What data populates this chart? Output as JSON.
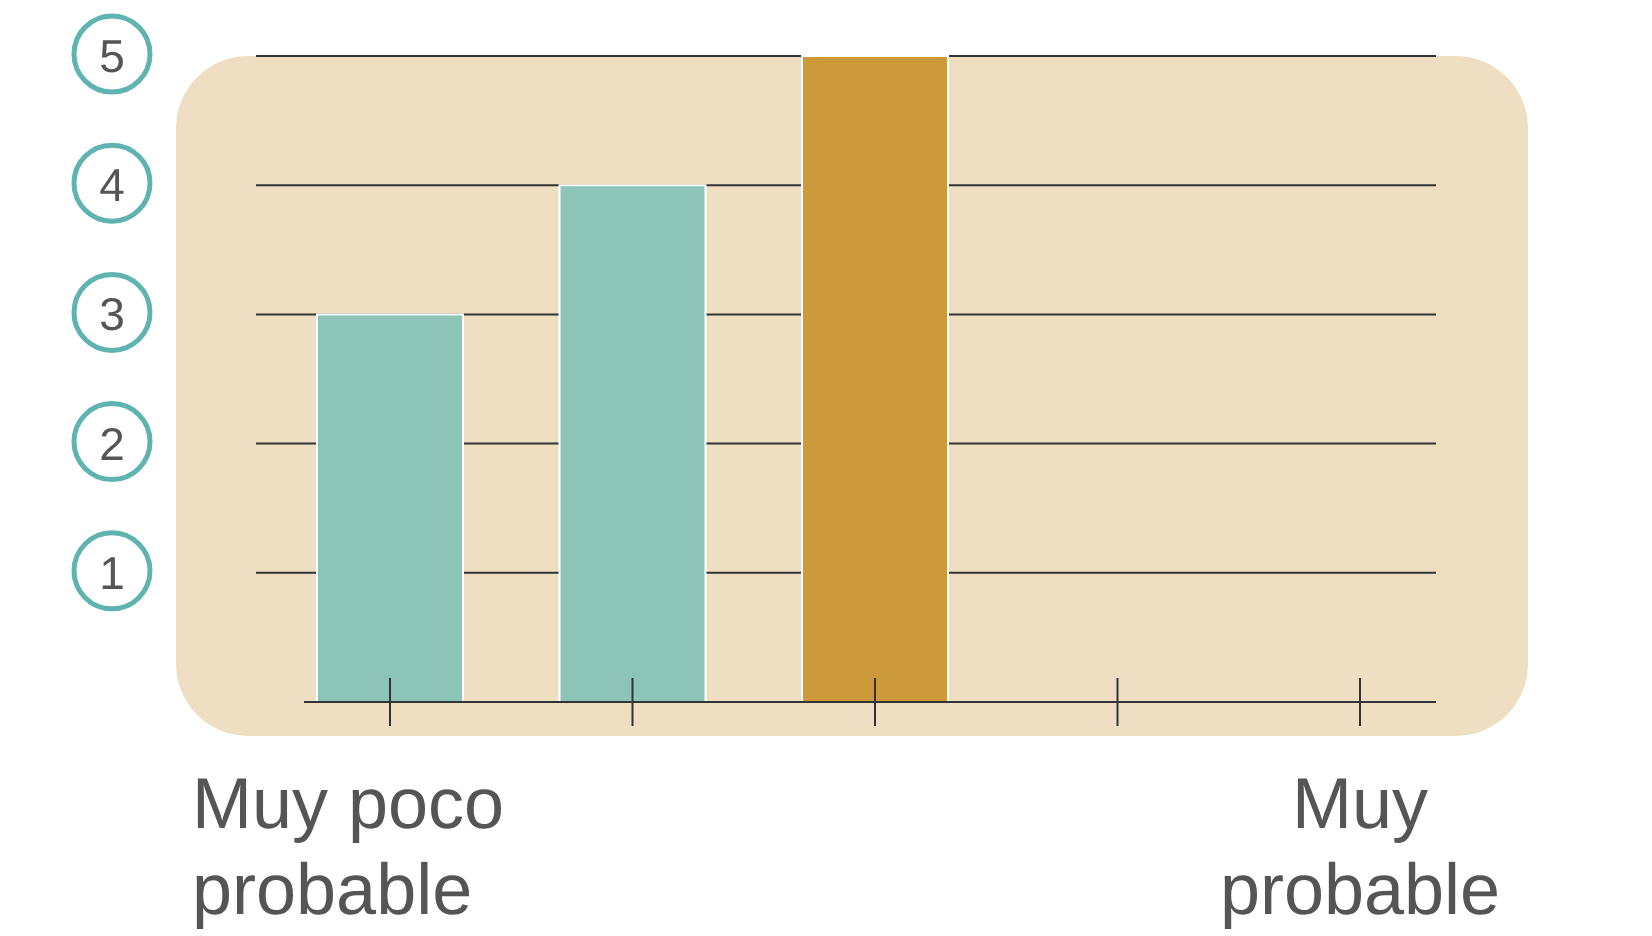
{
  "chart_data": {
    "type": "bar",
    "categories": [
      "Muy poco probable",
      null,
      null,
      null,
      "Muy probable"
    ],
    "values": [
      3,
      4,
      5,
      null,
      null
    ],
    "colors": [
      "#8cc5b8",
      "#8cc5b8",
      "#cc9a3a",
      null,
      null
    ],
    "ylim": [
      0,
      5
    ],
    "yticks": [
      1,
      2,
      3,
      4,
      5
    ],
    "grid": "y"
  }
}
